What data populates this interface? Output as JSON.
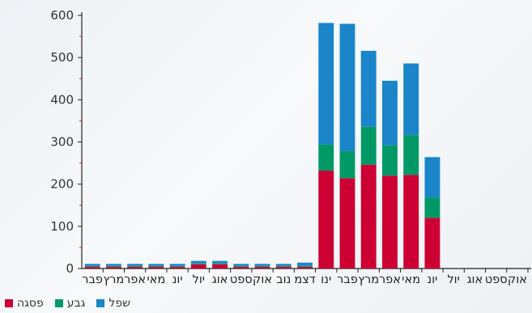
{
  "chart_data": {
    "type": "bar",
    "stacked": true,
    "categories": [
      "פבר",
      "מרץ",
      "אפר",
      "מאי",
      "יונ",
      "יול",
      "אוג",
      "ספט",
      "אוק",
      "נוב",
      "דצמ",
      "ינו",
      "פבר",
      "מרץ",
      "אפר",
      "מאי",
      "יונ",
      "יול",
      "אוג",
      "ספט",
      "אוק"
    ],
    "series": [
      {
        "name": "פסגה",
        "color": "#cc0033",
        "values": [
          4,
          4,
          4,
          4,
          4,
          10,
          10,
          4,
          4,
          4,
          4,
          232,
          214,
          246,
          220,
          222,
          120,
          0,
          0,
          0,
          0
        ]
      },
      {
        "name": "גבע",
        "color": "#009966",
        "values": [
          2,
          2,
          2,
          2,
          2,
          2,
          2,
          2,
          2,
          2,
          2,
          62,
          64,
          90,
          72,
          94,
          48,
          0,
          0,
          0,
          0
        ]
      },
      {
        "name": "שפל",
        "color": "#1a85c8",
        "values": [
          5,
          5,
          5,
          5,
          5,
          6,
          6,
          5,
          5,
          5,
          8,
          288,
          302,
          180,
          153,
          170,
          96,
          0,
          0,
          0,
          0
        ]
      }
    ],
    "ylim": [
      0,
      600
    ],
    "yticks": [
      0,
      100,
      200,
      300,
      400,
      500,
      600
    ],
    "grid": false,
    "legend_position": "bottom-left"
  },
  "legend": [
    {
      "label": "פסגה",
      "color": "#cc0033"
    },
    {
      "label": "גבע",
      "color": "#009966"
    },
    {
      "label": "שפל",
      "color": "#1a85c8"
    }
  ]
}
